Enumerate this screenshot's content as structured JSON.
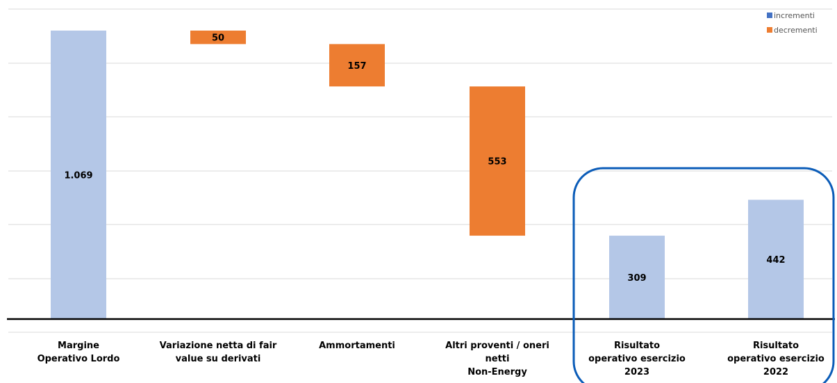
{
  "chart_data": {
    "type": "bar",
    "subtype": "waterfall",
    "categories": [
      [
        "Margine",
        "Operativo Lordo"
      ],
      [
        "Variazione netta di fair",
        "value su derivati"
      ],
      [
        "Ammortamenti"
      ],
      [
        "Altri proventi / oneri",
        "netti",
        "Non-Energy"
      ],
      [
        "Risultato",
        "operativo esercizio",
        "2023"
      ],
      [
        "Risultato",
        "operativo esercizio",
        "2022"
      ]
    ],
    "bars": [
      {
        "start": 0,
        "end": 1069,
        "label": "1.069",
        "kind": "incrementi"
      },
      {
        "start": 1069,
        "end": 1019,
        "label": "50",
        "kind": "decrementi"
      },
      {
        "start": 1019,
        "end": 862,
        "label": "157",
        "kind": "decrementi"
      },
      {
        "start": 862,
        "end": 309,
        "label": "553",
        "kind": "decrementi"
      },
      {
        "start": 0,
        "end": 309,
        "label": "309",
        "kind": "incrementi"
      },
      {
        "start": 0,
        "end": 442,
        "label": "442",
        "kind": "incrementi"
      }
    ],
    "legend": {
      "position": "top-right",
      "entries": [
        {
          "name": "incrementi",
          "color": "#4472c4"
        },
        {
          "name": "decrementi",
          "color": "#ed7d31"
        }
      ]
    },
    "colors": {
      "incrementi_bar": "#b4c7e7",
      "decrementi_bar": "#ed7d31",
      "highlight_box": "#0b5cb8",
      "gridline": "#d9d9d9",
      "axis": "#000000"
    },
    "ylim": [
      0,
      1150
    ],
    "grid": true,
    "highlight": "categories 5-6"
  }
}
